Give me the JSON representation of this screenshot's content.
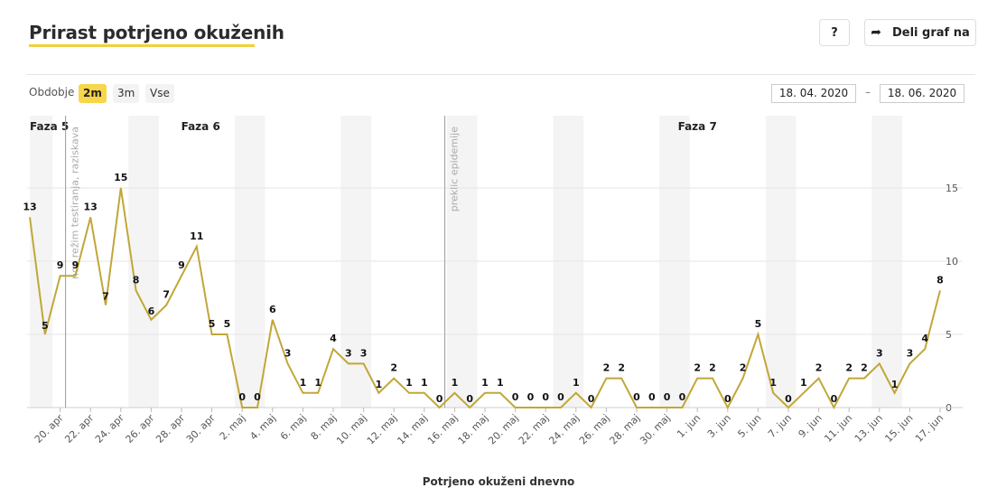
{
  "header": {
    "title": "Prirast potrjeno okuženih",
    "help_label": "?",
    "share_label": "Deli graf na",
    "share_icon": "share-arrow-icon"
  },
  "period": {
    "label": "Obdobje",
    "options": [
      "2m",
      "3m",
      "Vse"
    ],
    "selected": "2m"
  },
  "date_range": {
    "from": "18. 04. 2020",
    "separator": "–",
    "to": "18. 06. 2020"
  },
  "footer_label": "Potrjeno okuženi dnevno",
  "chart_data": {
    "type": "line",
    "title": "Prirast potrjeno okuženih",
    "xlabel": "Potrjeno okuženi dnevno",
    "ylabel": "",
    "ylim": [
      0,
      20
    ],
    "yticks": [
      0,
      5,
      10,
      15
    ],
    "y_axis_side": "right",
    "grid": true,
    "line_color": "#c1a737",
    "x_start": "2020-04-18",
    "values": [
      13,
      5,
      9,
      9,
      13,
      7,
      15,
      8,
      6,
      7,
      9,
      11,
      5,
      5,
      0,
      0,
      6,
      3,
      1,
      1,
      4,
      3,
      3,
      1,
      2,
      1,
      1,
      0,
      1,
      0,
      1,
      1,
      0,
      0,
      0,
      0,
      1,
      0,
      2,
      2,
      0,
      0,
      0,
      0,
      2,
      2,
      0,
      2,
      5,
      1,
      0,
      1,
      2,
      0,
      2,
      2,
      3,
      1,
      3,
      4,
      8
    ],
    "tick_labels": [
      "20. apr",
      "22. apr",
      "24. apr",
      "26. apr",
      "28. apr",
      "30. apr",
      "2. maj",
      "4. maj",
      "6. maj",
      "8. maj",
      "10. maj",
      "12. maj",
      "14. maj",
      "16. maj",
      "18. maj",
      "20. maj",
      "22. maj",
      "24. maj",
      "26. maj",
      "28. maj",
      "30. maj",
      "1. jun",
      "3. jun",
      "5. jun",
      "7. jun",
      "9. jun",
      "11. jun",
      "13. jun",
      "15. jun",
      "17. jun"
    ],
    "phases": [
      {
        "label": "Faza 5",
        "start": "2020-04-18"
      },
      {
        "label": "Faza 6",
        "start": "2020-04-20"
      },
      {
        "label": "Faza 7",
        "start": "2020-05-15"
      }
    ],
    "annotations": [
      {
        "date": "2020-04-20",
        "label": "nov režim testiranja, raziskava"
      },
      {
        "date": "2020-05-15",
        "label": "preklic epidemije"
      }
    ],
    "weekend_shading": true
  }
}
